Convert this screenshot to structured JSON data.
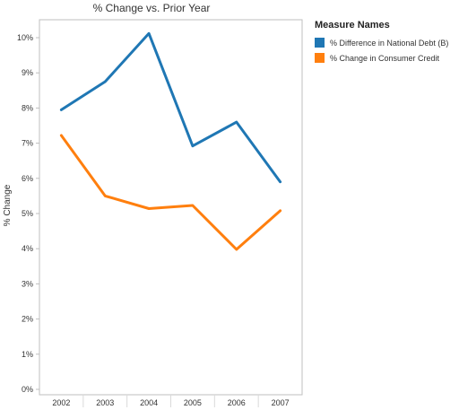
{
  "chart_data": {
    "type": "line",
    "title": "% Change vs. Prior Year",
    "xlabel": "",
    "ylabel": "% Change",
    "categories": [
      "2002",
      "2003",
      "2004",
      "2005",
      "2006",
      "2007"
    ],
    "ylim": [
      0,
      10.5
    ],
    "yticks": [
      "0%",
      "1%",
      "2%",
      "3%",
      "4%",
      "5%",
      "6%",
      "7%",
      "8%",
      "9%",
      "10%"
    ],
    "grid": false,
    "legend_position": "top-right",
    "legend_title": "Measure Names",
    "series": [
      {
        "name": "% Difference in National Debt (B)",
        "color": "#1f77b4",
        "values": [
          7.95,
          8.75,
          10.12,
          6.92,
          7.6,
          5.9
        ]
      },
      {
        "name": "% Change in Consumer Credit",
        "color": "#ff7f0e",
        "values": [
          7.22,
          5.5,
          5.14,
          5.23,
          3.98,
          5.08
        ]
      }
    ]
  }
}
